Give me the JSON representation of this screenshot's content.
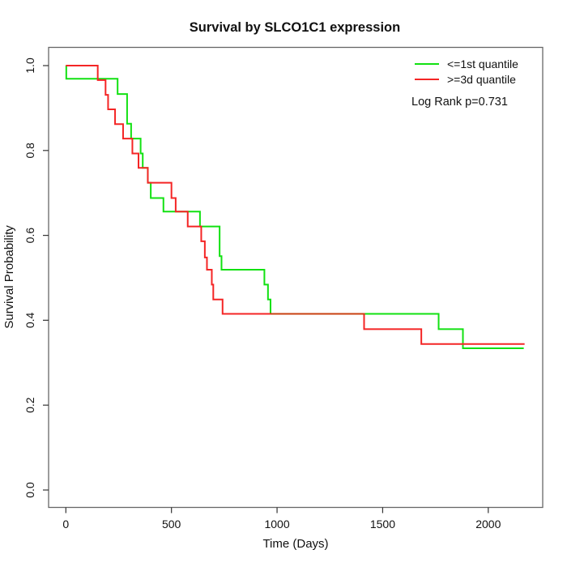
{
  "chart_data": {
    "type": "line",
    "variant": "kaplan-meier-step-curves",
    "title": "Survival by SLCO1C1 expression",
    "xlabel": "Time (Days)",
    "ylabel": "Survival Probability",
    "xlim": [
      0,
      2250
    ],
    "ylim": [
      0,
      1.0
    ],
    "x_ticks": {
      "values": [
        0,
        500,
        1000,
        1500,
        2000
      ],
      "labels": [
        "0",
        "500",
        "1000",
        "1500",
        "2000"
      ]
    },
    "y_ticks": {
      "values": [
        0.0,
        0.2,
        0.4,
        0.6,
        0.8,
        1.0
      ],
      "labels": [
        "0.0",
        "0.2",
        "0.4",
        "0.6",
        "0.8",
        "1.0"
      ]
    },
    "grid": false,
    "legend": {
      "position": "topright"
    },
    "annotation": "Log Rank p=0.731",
    "series": [
      {
        "name": "<=1st quantile",
        "key": "le-1st-quantile",
        "color": "#12e112",
        "end_day": 2168,
        "steps": [
          [
            0,
            1.0
          ],
          [
            2,
            0.969
          ],
          [
            245,
            0.933
          ],
          [
            290,
            0.863
          ],
          [
            309,
            0.828
          ],
          [
            354,
            0.793
          ],
          [
            364,
            0.759
          ],
          [
            388,
            0.724
          ],
          [
            402,
            0.688
          ],
          [
            462,
            0.656
          ],
          [
            635,
            0.621
          ],
          [
            728,
            0.551
          ],
          [
            737,
            0.519
          ],
          [
            940,
            0.484
          ],
          [
            957,
            0.449
          ],
          [
            969,
            0.415
          ],
          [
            1765,
            0.379
          ],
          [
            1880,
            0.334
          ]
        ]
      },
      {
        "name": ">=3d quantile",
        "key": "ge-3d-quantile",
        "color": "#f42525",
        "end_day": 2172,
        "steps": [
          [
            0,
            1.0
          ],
          [
            151,
            0.966
          ],
          [
            188,
            0.931
          ],
          [
            200,
            0.897
          ],
          [
            233,
            0.862
          ],
          [
            271,
            0.828
          ],
          [
            315,
            0.793
          ],
          [
            344,
            0.759
          ],
          [
            388,
            0.724
          ],
          [
            500,
            0.688
          ],
          [
            520,
            0.656
          ],
          [
            577,
            0.621
          ],
          [
            641,
            0.586
          ],
          [
            658,
            0.548
          ],
          [
            668,
            0.519
          ],
          [
            691,
            0.484
          ],
          [
            698,
            0.449
          ],
          [
            742,
            0.415
          ],
          [
            1412,
            0.379
          ],
          [
            1683,
            0.344
          ]
        ]
      }
    ],
    "overlap_segment": {
      "from_day": 969,
      "to_day": 1412,
      "value": 0.415,
      "color": "#c84010",
      "note": "both curves coincide"
    }
  }
}
